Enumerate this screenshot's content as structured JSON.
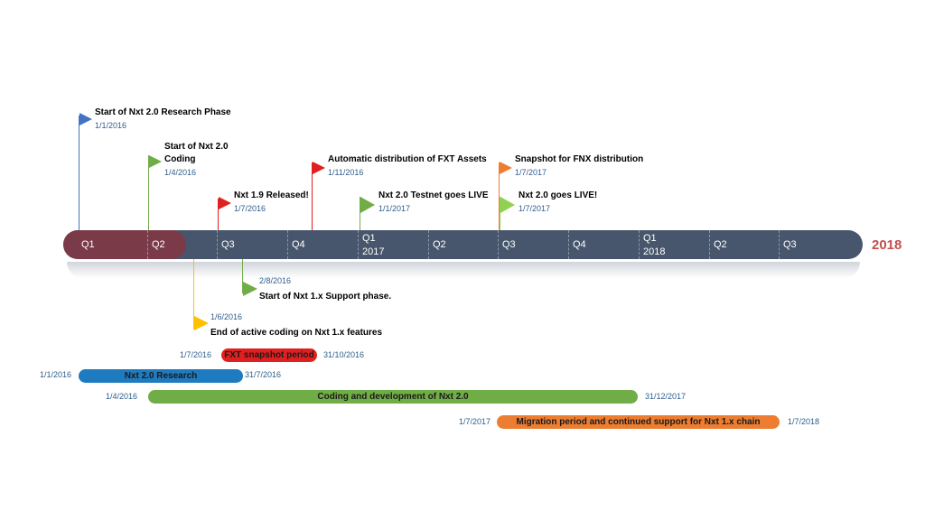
{
  "timeline": {
    "end_year": "2018",
    "quarters": [
      {
        "label": "Q1",
        "year": ""
      },
      {
        "label": "Q2",
        "year": ""
      },
      {
        "label": "Q3",
        "year": ""
      },
      {
        "label": "Q4",
        "year": ""
      },
      {
        "label": "Q1",
        "year": "2017"
      },
      {
        "label": "Q2",
        "year": ""
      },
      {
        "label": "Q3",
        "year": ""
      },
      {
        "label": "Q4",
        "year": ""
      },
      {
        "label": "Q1",
        "year": "2018"
      },
      {
        "label": "Q2",
        "year": ""
      },
      {
        "label": "Q3",
        "year": ""
      }
    ]
  },
  "milestones_above": [
    {
      "title": "Start of Nxt 2.0 Research Phase",
      "date": "1/1/2016",
      "color": "#4472c4"
    },
    {
      "title": "Start of Nxt 2.0",
      "title2": "Coding",
      "date": "1/4/2016",
      "color": "#70ad47"
    },
    {
      "title": "Nxt 1.9 Released!",
      "date": "1/7/2016",
      "color": "#e02020"
    },
    {
      "title": "Automatic distribution of FXT Assets",
      "date": "1/11/2016",
      "color": "#e02020"
    },
    {
      "title": "Nxt 2.0 Testnet goes LIVE",
      "date": "1/1/2017",
      "color": "#70ad47"
    },
    {
      "title": "Snapshot for FNX distribution",
      "date": "1/7/2017",
      "color": "#ed7d31"
    },
    {
      "title": "Nxt 2.0 goes LIVE!",
      "date": "1/7/2017",
      "color": "#92d050"
    }
  ],
  "milestones_below": [
    {
      "title": "Start of Nxt 1.x Support phase.",
      "date": "2/8/2016",
      "color": "#70ad47"
    },
    {
      "title": "End of active coding on Nxt 1.x features",
      "date": "1/6/2016",
      "color": "#ffc000"
    }
  ],
  "bars": [
    {
      "label": "FXT snapshot period",
      "start": "1/7/2016",
      "end": "31/10/2016",
      "color": "#e02020"
    },
    {
      "label": "Nxt 2.0 Research",
      "start": "1/1/2016",
      "end": "31/7/2016",
      "color": "#1f7bc0"
    },
    {
      "label": "Coding and development of Nxt 2.0",
      "start": "1/4/2016",
      "end": "31/12/2017",
      "color": "#70ad47"
    },
    {
      "label": "Migration period and continued support for Nxt 1.x chain",
      "start": "1/7/2017",
      "end": "1/7/2018",
      "color": "#ed7d31"
    }
  ]
}
